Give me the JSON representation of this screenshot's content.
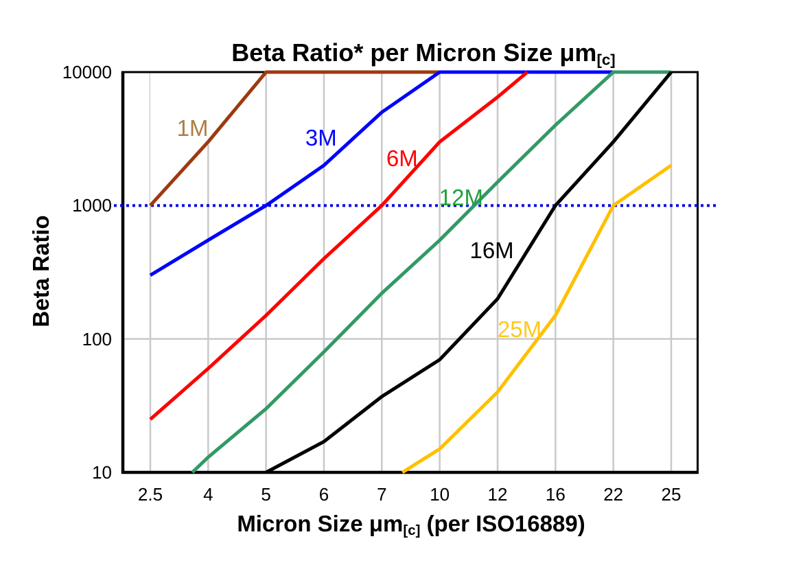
{
  "texts": {
    "title_main": "Beta Ratio* per Micron Size ",
    "title_unit": "μm",
    "title_sub": "[c]",
    "xlabel_main": "Micron Size ",
    "xlabel_unit": "μm",
    "xlabel_sub": "[c]",
    "xlabel_suffix": " (per ISO16889)",
    "ylabel": "Beta Ratio"
  },
  "chart_data": {
    "type": "line",
    "title": "Beta Ratio* per Micron Size μm[c]",
    "xlabel": "Micron Size μm[c] (per ISO16889)",
    "ylabel": "Beta Ratio",
    "x_categories": [
      "2.5",
      "4",
      "5",
      "6",
      "7",
      "10",
      "12",
      "16",
      "22",
      "25"
    ],
    "y_scale": "log",
    "ylim": [
      10,
      10000
    ],
    "y_ticks": [
      "10",
      "100",
      "1000",
      "10000"
    ],
    "grid": {
      "vertical": true,
      "horizontal_at": [
        100
      ],
      "color": "#C9C9C9"
    },
    "reference_line": {
      "value": 1000,
      "color": "#0000E6",
      "style": "dotted"
    },
    "series": [
      {
        "name": "1M",
        "color": "#9C3A0F",
        "label_color": "#AF7D46",
        "values": [
          1000,
          3000,
          10000,
          10000,
          10000,
          10000,
          null,
          null,
          null,
          null
        ],
        "label_pos": {
          "x_index": 0.73,
          "value": 3800
        }
      },
      {
        "name": "3M",
        "color": "#0000FF",
        "label_color": "#0000FF",
        "values": [
          300,
          550,
          1000,
          2000,
          5000,
          10000,
          10000,
          10000,
          10000,
          null
        ],
        "label_pos": {
          "x_index": 2.95,
          "value": 3200
        }
      },
      {
        "name": "6M",
        "color": "#FF0000",
        "label_color": "#FF0000",
        "values": [
          25,
          60,
          150,
          400,
          1000,
          3000,
          6500,
          15000,
          null,
          null
        ],
        "label_pos": {
          "x_index": 4.35,
          "value": 2250
        }
      },
      {
        "name": "12M",
        "color": "#339966",
        "label_color": "#1FA03C",
        "values": [
          5,
          13,
          30,
          80,
          220,
          550,
          1500,
          4000,
          10000,
          10000
        ],
        "label_pos": {
          "x_index": 5.37,
          "value": 1140
        }
      },
      {
        "name": "16M",
        "color": "#000000",
        "label_color": "#000000",
        "values": [
          null,
          null,
          10,
          17,
          37,
          70,
          200,
          1000,
          3000,
          10000
        ],
        "label_pos": {
          "x_index": 5.9,
          "value": 460
        }
      },
      {
        "name": "25M",
        "color": "#FFC000",
        "label_color": "#FFC91E",
        "values": [
          null,
          null,
          null,
          null,
          8,
          15,
          40,
          150,
          1000,
          2000
        ],
        "label_pos": {
          "x_index": 6.38,
          "value": 118
        }
      }
    ]
  }
}
